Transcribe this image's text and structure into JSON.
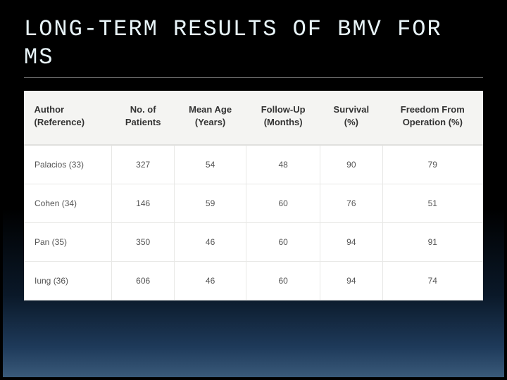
{
  "title": "LONG-TERM RESULTS OF BMV FOR MS",
  "table": {
    "type": "table",
    "background_color": "#f4f4f2",
    "header_text_color": "#333333",
    "cell_text_color": "#555555",
    "cell_background": "#ffffff",
    "border_color": "#e8e8e6",
    "header_fontsize": 13,
    "cell_fontsize": 12,
    "columns": [
      {
        "line1": "Author",
        "line2": "(Reference)",
        "align": "left"
      },
      {
        "line1": "No. of",
        "line2": "Patients",
        "align": "center"
      },
      {
        "line1": "Mean Age",
        "line2": "(Years)",
        "align": "center"
      },
      {
        "line1": "Follow-Up",
        "line2": "(Months)",
        "align": "center"
      },
      {
        "line1": "Survival",
        "line2": "(%)",
        "align": "center"
      },
      {
        "line1": "Freedom From",
        "line2": "Operation (%)",
        "align": "center"
      }
    ],
    "rows": [
      [
        "Palacios (33)",
        "327",
        "54",
        "48",
        "90",
        "79"
      ],
      [
        "Cohen (34)",
        "146",
        "59",
        "60",
        "76",
        "51"
      ],
      [
        "Pan (35)",
        "350",
        "46",
        "60",
        "94",
        "91"
      ],
      [
        "Iung (36)",
        "606",
        "46",
        "60",
        "94",
        "74"
      ]
    ]
  },
  "slide_background_gradient": [
    "#000000",
    "#0a1828",
    "#1e3a5a",
    "#3a5a7a"
  ],
  "title_color": "#e8f4f8",
  "title_fontsize": 32
}
